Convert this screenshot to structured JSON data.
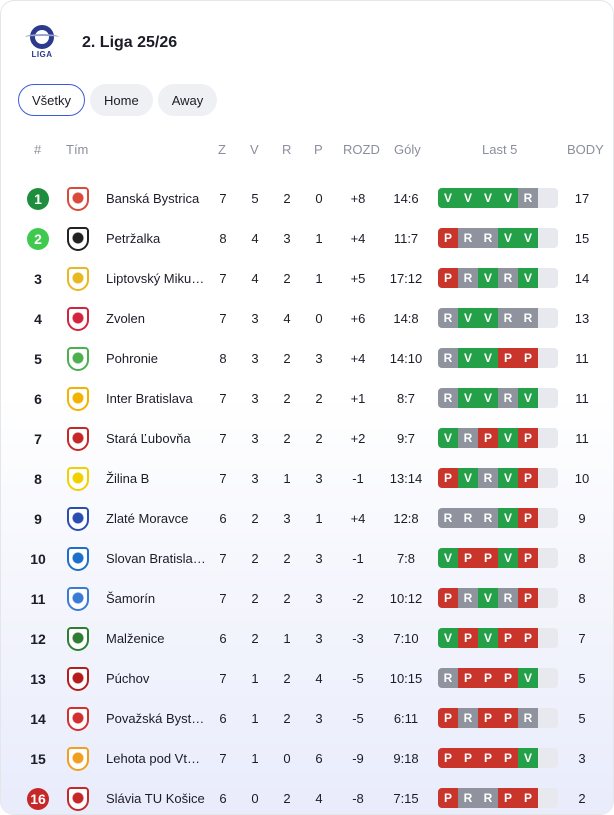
{
  "league": {
    "title": "2. Liga 25/26",
    "logo_text": "LIGA"
  },
  "tabs": [
    {
      "label": "Všetky",
      "active": true
    },
    {
      "label": "Home",
      "active": false
    },
    {
      "label": "Away",
      "active": false
    }
  ],
  "columns": {
    "pos": "#",
    "team": "Tím",
    "played": "Z",
    "won": "V",
    "drawn": "R",
    "lost": "P",
    "diff": "ROZD",
    "goals": "Góly",
    "form": "Last 5",
    "points": "BODY"
  },
  "colors": {
    "form_win": "#24a148",
    "form_draw": "#8e939e",
    "form_loss": "#c9352b",
    "promotion": "#1e8e3e",
    "playoff": "#3fc94f",
    "relegation": "#c62828",
    "tab_active_border": "#3b5bdb"
  },
  "rows": [
    {
      "pos": "1",
      "zone": "green",
      "team": "Banská Bystrica",
      "crest": "#d94a3b",
      "z": "7",
      "v": "5",
      "r": "2",
      "p": "0",
      "diff": "+8",
      "goals": "14:6",
      "form": [
        "V",
        "V",
        "V",
        "V",
        "R"
      ],
      "pts": "17"
    },
    {
      "pos": "2",
      "zone": "lgreen",
      "team": "Petržalka",
      "crest": "#222222",
      "z": "8",
      "v": "4",
      "r": "3",
      "p": "1",
      "diff": "+4",
      "goals": "11:7",
      "form": [
        "P",
        "R",
        "R",
        "V",
        "V"
      ],
      "pts": "15"
    },
    {
      "pos": "3",
      "zone": "",
      "team": "Liptovský Mikuláš",
      "crest": "#e8b820",
      "z": "7",
      "v": "4",
      "r": "2",
      "p": "1",
      "diff": "+5",
      "goals": "17:12",
      "form": [
        "P",
        "R",
        "V",
        "R",
        "V"
      ],
      "pts": "14"
    },
    {
      "pos": "4",
      "zone": "",
      "team": "Zvolen",
      "crest": "#d3243b",
      "z": "7",
      "v": "3",
      "r": "4",
      "p": "0",
      "diff": "+6",
      "goals": "14:8",
      "form": [
        "R",
        "V",
        "V",
        "R",
        "R"
      ],
      "pts": "13"
    },
    {
      "pos": "5",
      "zone": "",
      "team": "Pohronie",
      "crest": "#4caf50",
      "z": "8",
      "v": "3",
      "r": "2",
      "p": "3",
      "diff": "+4",
      "goals": "14:10",
      "form": [
        "R",
        "V",
        "V",
        "P",
        "P"
      ],
      "pts": "11"
    },
    {
      "pos": "6",
      "zone": "",
      "team": "Inter Bratislava",
      "crest": "#f2b200",
      "z": "7",
      "v": "3",
      "r": "2",
      "p": "2",
      "diff": "+1",
      "goals": "8:7",
      "form": [
        "R",
        "V",
        "V",
        "R",
        "V"
      ],
      "pts": "11"
    },
    {
      "pos": "7",
      "zone": "",
      "team": "Stará Ľubovňa",
      "crest": "#c62828",
      "z": "7",
      "v": "3",
      "r": "2",
      "p": "2",
      "diff": "+2",
      "goals": "9:7",
      "form": [
        "V",
        "R",
        "P",
        "V",
        "P"
      ],
      "pts": "11"
    },
    {
      "pos": "8",
      "zone": "",
      "team": "Žilina B",
      "crest": "#f1d000",
      "z": "7",
      "v": "3",
      "r": "1",
      "p": "3",
      "diff": "-1",
      "goals": "13:14",
      "form": [
        "P",
        "V",
        "R",
        "V",
        "P"
      ],
      "pts": "10"
    },
    {
      "pos": "9",
      "zone": "",
      "team": "Zlaté Moravce",
      "crest": "#2b4fb0",
      "z": "6",
      "v": "2",
      "r": "3",
      "p": "1",
      "diff": "+4",
      "goals": "12:8",
      "form": [
        "R",
        "R",
        "R",
        "V",
        "P"
      ],
      "pts": "9"
    },
    {
      "pos": "10",
      "zone": "",
      "team": "Slovan Bratislava B",
      "crest": "#1e6fc9",
      "z": "7",
      "v": "2",
      "r": "2",
      "p": "3",
      "diff": "-1",
      "goals": "7:8",
      "form": [
        "V",
        "P",
        "P",
        "V",
        "P"
      ],
      "pts": "8"
    },
    {
      "pos": "11",
      "zone": "",
      "team": "Šamorín",
      "crest": "#3a7bd5",
      "z": "7",
      "v": "2",
      "r": "2",
      "p": "3",
      "diff": "-2",
      "goals": "10:12",
      "form": [
        "P",
        "R",
        "V",
        "R",
        "P"
      ],
      "pts": "8"
    },
    {
      "pos": "12",
      "zone": "",
      "team": "Malženice",
      "crest": "#2e7d32",
      "z": "6",
      "v": "2",
      "r": "1",
      "p": "3",
      "diff": "-3",
      "goals": "7:10",
      "form": [
        "V",
        "P",
        "V",
        "P",
        "P"
      ],
      "pts": "7"
    },
    {
      "pos": "13",
      "zone": "",
      "team": "Púchov",
      "crest": "#b71c1c",
      "z": "7",
      "v": "1",
      "r": "2",
      "p": "4",
      "diff": "-5",
      "goals": "10:15",
      "form": [
        "R",
        "P",
        "P",
        "P",
        "V"
      ],
      "pts": "5"
    },
    {
      "pos": "14",
      "zone": "",
      "team": "Považská Bystrica",
      "crest": "#d32f2f",
      "z": "6",
      "v": "1",
      "r": "2",
      "p": "3",
      "diff": "-5",
      "goals": "6:11",
      "form": [
        "P",
        "R",
        "P",
        "P",
        "R"
      ],
      "pts": "5"
    },
    {
      "pos": "15",
      "zone": "",
      "team": "Lehota pod Vtáčnikom",
      "crest": "#f0a020",
      "z": "7",
      "v": "1",
      "r": "0",
      "p": "6",
      "diff": "-9",
      "goals": "9:18",
      "form": [
        "P",
        "P",
        "P",
        "P",
        "V"
      ],
      "pts": "3"
    },
    {
      "pos": "16",
      "zone": "red",
      "team": "Slávia TU Košice",
      "crest": "#c62828",
      "z": "6",
      "v": "0",
      "r": "2",
      "p": "4",
      "diff": "-8",
      "goals": "7:15",
      "form": [
        "P",
        "R",
        "R",
        "P",
        "P"
      ],
      "pts": "2"
    }
  ]
}
